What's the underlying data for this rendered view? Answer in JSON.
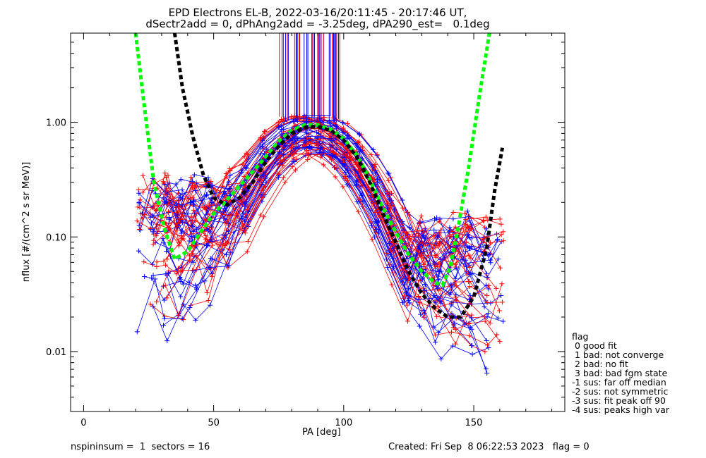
{
  "chart_data": {
    "type": "line",
    "title": "EPD Electrons EL-B, 2022-03-16/20:11:45 - 20:17:46 UT,",
    "subtitle": "dSectr2add = 0, dPhAng2add = -3.25deg, dPA290_est=   0.1deg",
    "xlabel": "PA [deg]",
    "ylabel": "nflux [#/(cm^2 s sr MeV)]",
    "xlim": [
      -5,
      185
    ],
    "ylim": [
      0.003,
      6
    ],
    "yscale": "log",
    "xticks": [
      0,
      50,
      100,
      150
    ],
    "ytick_labels": [
      {
        "value": 0.01,
        "label": "0.01"
      },
      {
        "value": 0.1,
        "label": "0.10"
      },
      {
        "value": 1.0,
        "label": "1.00"
      }
    ],
    "fit_curves": [
      {
        "color": "#00ff00",
        "style": "dashed",
        "x": [
          20,
          23,
          27,
          31,
          35,
          40,
          45,
          50,
          55,
          60,
          65,
          70,
          75,
          80,
          85,
          90,
          95,
          100,
          105,
          110,
          115,
          120,
          125,
          130,
          135,
          138,
          141,
          144,
          148,
          152,
          156
        ],
        "y": [
          6,
          1.6,
          0.3,
          0.12,
          0.064,
          0.075,
          0.11,
          0.16,
          0.21,
          0.28,
          0.37,
          0.5,
          0.68,
          0.85,
          0.95,
          0.95,
          0.87,
          0.72,
          0.52,
          0.32,
          0.18,
          0.11,
          0.07,
          0.05,
          0.04,
          0.038,
          0.055,
          0.12,
          0.4,
          1.6,
          6
        ]
      },
      {
        "color": "#000000",
        "style": "dashed",
        "x": [
          35,
          38,
          42,
          46,
          50,
          55,
          60,
          65,
          70,
          75,
          80,
          85,
          90,
          95,
          100,
          105,
          110,
          115,
          120,
          125,
          130,
          135,
          140,
          145,
          150,
          155,
          158,
          161
        ],
        "y": [
          6,
          2.0,
          0.75,
          0.35,
          0.22,
          0.19,
          0.22,
          0.3,
          0.45,
          0.62,
          0.8,
          0.9,
          0.92,
          0.85,
          0.7,
          0.5,
          0.3,
          0.16,
          0.09,
          0.05,
          0.032,
          0.024,
          0.02,
          0.02,
          0.03,
          0.08,
          0.25,
          0.6
        ]
      }
    ],
    "series_colors": {
      "red": "#ff0000",
      "blue": "#0000ff"
    },
    "legend": {
      "placement": "outside-right-bottom",
      "title": "flag",
      "entries": [
        " 0 good fit",
        " 1 bad: not converge",
        " 2 bad: no fit",
        " 3 bad: bad fgm state",
        "-1 sus: far off median",
        "-2 sus: not symmetric",
        "-3 sus: fit peak off 90",
        "-4 sus: peaks high var"
      ]
    }
  },
  "footer": {
    "left": "nspininsum =  1  sectors = 16",
    "right": "Created: Fri Sep  8 06:22:53 2023   flag = 0"
  }
}
